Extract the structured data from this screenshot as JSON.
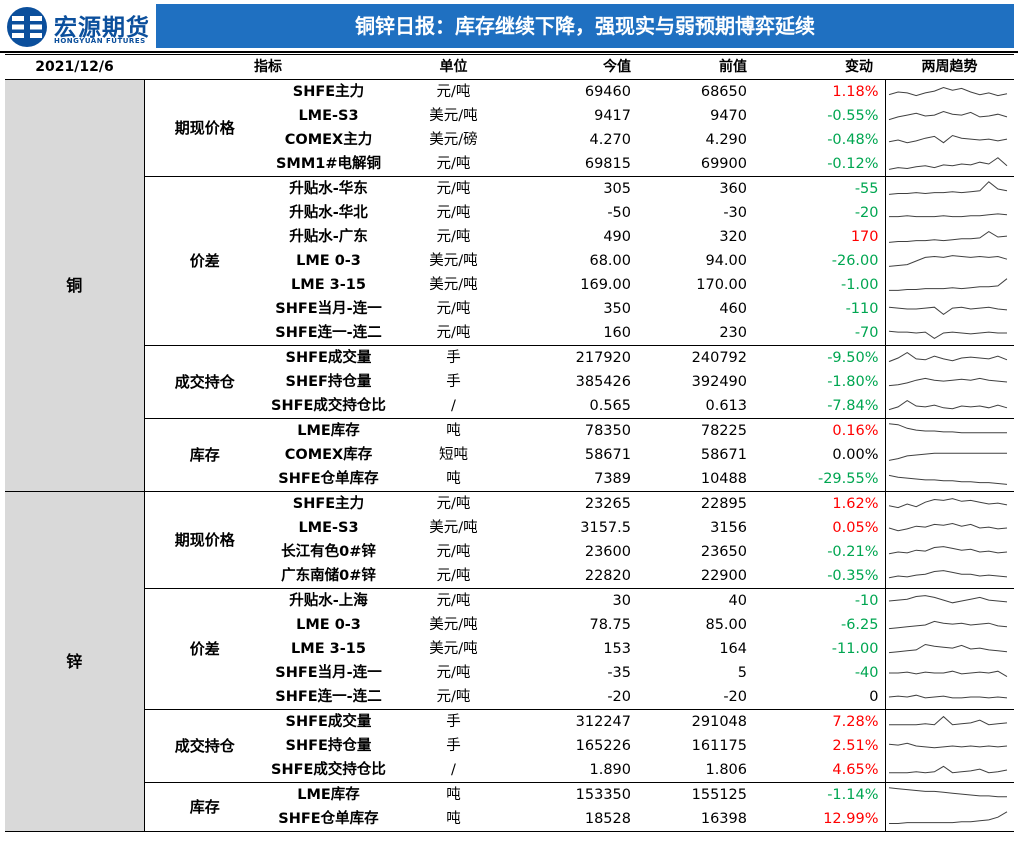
{
  "header": {
    "logo_cn": "宏源期货",
    "logo_en": "HONGYUAN FUTURES",
    "title": "铜锌日报：库存继续下降，强现实与弱预期博弈延续"
  },
  "columns": {
    "date": "2021/12/6",
    "indicator": "指标",
    "unit": "单位",
    "current": "今值",
    "previous": "前值",
    "change": "变动",
    "trend": "两周趋势"
  },
  "colors": {
    "title_bar": "#1f70c1",
    "logo": "#0b4f9c",
    "up": "#ff0000",
    "down": "#00a651",
    "group_bg": "#d9d9d9"
  },
  "groups": [
    {
      "name": "铜",
      "sections": [
        {
          "name": "期现价格",
          "rows": [
            {
              "indicator": "SHFE主力",
              "unit": "元/吨",
              "current": "69460",
              "previous": "68650",
              "change": "1.18%",
              "dir": "up",
              "trend": [
                0.35,
                0.5,
                0.45,
                0.3,
                0.45,
                0.55,
                0.75,
                0.6,
                0.7,
                0.5,
                0.35,
                0.45,
                0.3,
                0.4
              ]
            },
            {
              "indicator": "LME-S3",
              "unit": "美元/吨",
              "current": "9417",
              "previous": "9470",
              "change": "-0.55%",
              "dir": "down",
              "trend": [
                0.3,
                0.45,
                0.55,
                0.65,
                0.5,
                0.55,
                0.75,
                0.6,
                0.55,
                0.7,
                0.45,
                0.5,
                0.6,
                0.45
              ]
            },
            {
              "indicator": "COMEX主力",
              "unit": "美元/磅",
              "current": "4.270",
              "previous": "4.290",
              "change": "-0.48%",
              "dir": "down",
              "trend": [
                0.4,
                0.5,
                0.35,
                0.45,
                0.6,
                0.7,
                0.35,
                0.75,
                0.6,
                0.55,
                0.5,
                0.55,
                0.45,
                0.55
              ]
            },
            {
              "indicator": "SMM1#电解铜",
              "unit": "元/吨",
              "current": "69815",
              "previous": "69900",
              "change": "-0.12%",
              "dir": "down",
              "trend": [
                0.2,
                0.3,
                0.25,
                0.35,
                0.4,
                0.3,
                0.45,
                0.4,
                0.5,
                0.45,
                0.6,
                0.5,
                0.85,
                0.4
              ]
            }
          ]
        },
        {
          "name": "价差",
          "rows": [
            {
              "indicator": "升贴水-华东",
              "unit": "元/吨",
              "current": "305",
              "previous": "360",
              "change": "-55",
              "dir": "down",
              "trend": [
                0.2,
                0.25,
                0.25,
                0.3,
                0.25,
                0.3,
                0.3,
                0.35,
                0.3,
                0.35,
                0.4,
                0.9,
                0.5,
                0.4
              ]
            },
            {
              "indicator": "升贴水-华北",
              "unit": "元/吨",
              "current": "-50",
              "previous": "-30",
              "change": "-20",
              "dir": "down",
              "trend": [
                0.3,
                0.3,
                0.35,
                0.3,
                0.3,
                0.3,
                0.35,
                0.3,
                0.3,
                0.35,
                0.35,
                0.4,
                0.45,
                0.4
              ]
            },
            {
              "indicator": "升贴水-广东",
              "unit": "元/吨",
              "current": "490",
              "previous": "320",
              "change": "170",
              "dir": "up",
              "trend": [
                0.2,
                0.25,
                0.25,
                0.3,
                0.3,
                0.35,
                0.3,
                0.35,
                0.4,
                0.4,
                0.45,
                0.8,
                0.5,
                0.55
              ]
            },
            {
              "indicator": "LME 0-3",
              "unit": "美元/吨",
              "current": "68.00",
              "previous": "94.00",
              "change": "-26.00",
              "dir": "down",
              "trend": [
                0.2,
                0.25,
                0.3,
                0.5,
                0.7,
                0.75,
                0.7,
                0.8,
                0.75,
                0.7,
                0.75,
                0.7,
                0.75,
                0.6
              ]
            },
            {
              "indicator": "LME 3-15",
              "unit": "美元/吨",
              "current": "169.00",
              "previous": "170.00",
              "change": "-1.00",
              "dir": "down",
              "trend": [
                0.2,
                0.2,
                0.25,
                0.25,
                0.3,
                0.3,
                0.3,
                0.35,
                0.3,
                0.35,
                0.4,
                0.4,
                0.45,
                0.85
              ]
            },
            {
              "indicator": "SHFE当月-连一",
              "unit": "元/吨",
              "current": "350",
              "previous": "460",
              "change": "-110",
              "dir": "down",
              "trend": [
                0.6,
                0.55,
                0.5,
                0.5,
                0.55,
                0.6,
                0.2,
                0.55,
                0.6,
                0.5,
                0.55,
                0.6,
                0.5,
                0.45
              ]
            },
            {
              "indicator": "SHFE连一-连二",
              "unit": "元/吨",
              "current": "160",
              "previous": "230",
              "change": "-70",
              "dir": "down",
              "trend": [
                0.6,
                0.55,
                0.55,
                0.5,
                0.55,
                0.2,
                0.5,
                0.55,
                0.5,
                0.45,
                0.5,
                0.55,
                0.5,
                0.5
              ]
            }
          ]
        },
        {
          "name": "成交持仓",
          "rows": [
            {
              "indicator": "SHFE成交量",
              "unit": "手",
              "current": "217920",
              "previous": "240792",
              "change": "-9.50%",
              "dir": "down",
              "trend": [
                0.3,
                0.5,
                0.8,
                0.45,
                0.4,
                0.6,
                0.45,
                0.35,
                0.5,
                0.55,
                0.5,
                0.45,
                0.6,
                0.4
              ]
            },
            {
              "indicator": "SHEF持仓量",
              "unit": "手",
              "current": "385426",
              "previous": "392490",
              "change": "-1.80%",
              "dir": "down",
              "trend": [
                0.3,
                0.35,
                0.45,
                0.6,
                0.7,
                0.6,
                0.55,
                0.6,
                0.65,
                0.6,
                0.7,
                0.6,
                0.55,
                0.5
              ]
            },
            {
              "indicator": "SHFE成交持仓比",
              "unit": "/",
              "current": "0.565",
              "previous": "0.613",
              "change": "-7.84%",
              "dir": "down",
              "trend": [
                0.3,
                0.45,
                0.8,
                0.5,
                0.45,
                0.55,
                0.4,
                0.35,
                0.5,
                0.45,
                0.5,
                0.4,
                0.55,
                0.4
              ]
            }
          ]
        },
        {
          "name": "库存",
          "rows": [
            {
              "indicator": "LME库存",
              "unit": "吨",
              "current": "78350",
              "previous": "78225",
              "change": "0.16%",
              "dir": "up",
              "trend": [
                0.9,
                0.85,
                0.65,
                0.55,
                0.5,
                0.5,
                0.45,
                0.45,
                0.4,
                0.4,
                0.4,
                0.4,
                0.4,
                0.4
              ]
            },
            {
              "indicator": "COMEX库存",
              "unit": "短吨",
              "current": "58671",
              "previous": "58671",
              "change": "0.00%",
              "dir": "flat",
              "trend": [
                0.2,
                0.3,
                0.45,
                0.5,
                0.55,
                0.6,
                0.6,
                0.6,
                0.6,
                0.6,
                0.6,
                0.6,
                0.6,
                0.6
              ]
            },
            {
              "indicator": "SHFE仓单库存",
              "unit": "吨",
              "current": "7389",
              "previous": "10488",
              "change": "-29.55%",
              "dir": "down",
              "trend": [
                0.7,
                0.6,
                0.55,
                0.5,
                0.45,
                0.45,
                0.4,
                0.4,
                0.35,
                0.35,
                0.3,
                0.3,
                0.25,
                0.2
              ]
            }
          ]
        }
      ]
    },
    {
      "name": "锌",
      "sections": [
        {
          "name": "期现价格",
          "rows": [
            {
              "indicator": "SHFE主力",
              "unit": "元/吨",
              "current": "23265",
              "previous": "22895",
              "change": "1.62%",
              "dir": "up",
              "trend": [
                0.4,
                0.3,
                0.5,
                0.35,
                0.6,
                0.75,
                0.7,
                0.8,
                0.65,
                0.7,
                0.6,
                0.5,
                0.55,
                0.45
              ]
            },
            {
              "indicator": "LME-S3",
              "unit": "美元/吨",
              "current": "3157.5",
              "previous": "3156",
              "change": "0.05%",
              "dir": "up",
              "trend": [
                0.5,
                0.35,
                0.45,
                0.6,
                0.55,
                0.7,
                0.65,
                0.75,
                0.6,
                0.7,
                0.5,
                0.55,
                0.45,
                0.5
              ]
            },
            {
              "indicator": "长江有色0#锌",
              "unit": "元/吨",
              "current": "23600",
              "previous": "23650",
              "change": "-0.21%",
              "dir": "down",
              "trend": [
                0.4,
                0.5,
                0.45,
                0.6,
                0.55,
                0.75,
                0.8,
                0.7,
                0.6,
                0.65,
                0.5,
                0.55,
                0.45,
                0.5
              ]
            },
            {
              "indicator": "广东南储0#锌",
              "unit": "元/吨",
              "current": "22820",
              "previous": "22900",
              "change": "-0.35%",
              "dir": "down",
              "trend": [
                0.4,
                0.5,
                0.45,
                0.55,
                0.6,
                0.75,
                0.8,
                0.7,
                0.6,
                0.6,
                0.5,
                0.55,
                0.5,
                0.45
              ]
            }
          ]
        },
        {
          "name": "价差",
          "rows": [
            {
              "indicator": "升贴水-上海",
              "unit": "元/吨",
              "current": "30",
              "previous": "40",
              "change": "-10",
              "dir": "down",
              "trend": [
                0.5,
                0.55,
                0.6,
                0.75,
                0.8,
                0.7,
                0.55,
                0.4,
                0.5,
                0.6,
                0.7,
                0.55,
                0.5,
                0.45
              ]
            },
            {
              "indicator": "LME 0-3",
              "unit": "美元/吨",
              "current": "78.75",
              "previous": "85.00",
              "change": "-6.25",
              "dir": "down",
              "trend": [
                0.3,
                0.35,
                0.4,
                0.45,
                0.5,
                0.7,
                0.6,
                0.55,
                0.6,
                0.5,
                0.55,
                0.6,
                0.45,
                0.4
              ]
            },
            {
              "indicator": "LME 3-15",
              "unit": "美元/吨",
              "current": "153",
              "previous": "164",
              "change": "-11.00",
              "dir": "down",
              "trend": [
                0.3,
                0.35,
                0.4,
                0.45,
                0.75,
                0.65,
                0.6,
                0.55,
                0.7,
                0.5,
                0.55,
                0.45,
                0.4,
                0.35
              ]
            },
            {
              "indicator": "SHFE当月-连一",
              "unit": "元/吨",
              "current": "-35",
              "previous": "5",
              "change": "-40",
              "dir": "down",
              "trend": [
                0.5,
                0.5,
                0.55,
                0.45,
                0.55,
                0.5,
                0.5,
                0.6,
                0.45,
                0.5,
                0.55,
                0.5,
                0.6,
                0.3
              ]
            },
            {
              "indicator": "SHFE连一-连二",
              "unit": "元/吨",
              "current": "-20",
              "previous": "-20",
              "change": "0",
              "dir": "flat",
              "trend": [
                0.5,
                0.55,
                0.5,
                0.6,
                0.45,
                0.5,
                0.55,
                0.45,
                0.45,
                0.5,
                0.5,
                0.45,
                0.5,
                0.45
              ]
            }
          ]
        },
        {
          "name": "成交持仓",
          "rows": [
            {
              "indicator": "SHFE成交量",
              "unit": "手",
              "current": "312247",
              "previous": "291048",
              "change": "7.28%",
              "dir": "up",
              "trend": [
                0.35,
                0.35,
                0.35,
                0.35,
                0.4,
                0.35,
                0.8,
                0.35,
                0.4,
                0.45,
                0.6,
                0.35,
                0.4,
                0.45
              ]
            },
            {
              "indicator": "SHFE持仓量",
              "unit": "手",
              "current": "165226",
              "previous": "161175",
              "change": "2.51%",
              "dir": "up",
              "trend": [
                0.6,
                0.55,
                0.65,
                0.5,
                0.45,
                0.4,
                0.45,
                0.5,
                0.45,
                0.5,
                0.45,
                0.5,
                0.45,
                0.5
              ]
            },
            {
              "indicator": "SHFE成交持仓比",
              "unit": "/",
              "current": "1.890",
              "previous": "1.806",
              "change": "4.65%",
              "dir": "up",
              "trend": [
                0.35,
                0.35,
                0.35,
                0.4,
                0.35,
                0.4,
                0.7,
                0.35,
                0.4,
                0.45,
                0.55,
                0.35,
                0.4,
                0.5
              ]
            }
          ]
        },
        {
          "name": "库存",
          "rows": [
            {
              "indicator": "LME库存",
              "unit": "吨",
              "current": "153350",
              "previous": "155125",
              "change": "-1.14%",
              "dir": "down",
              "trend": [
                0.9,
                0.85,
                0.8,
                0.75,
                0.7,
                0.7,
                0.65,
                0.6,
                0.55,
                0.5,
                0.45,
                0.45,
                0.4,
                0.4
              ]
            },
            {
              "indicator": "SHFE仓单库存",
              "unit": "吨",
              "current": "18528",
              "previous": "16398",
              "change": "12.99%",
              "dir": "up",
              "trend": [
                0.25,
                0.25,
                0.3,
                0.3,
                0.3,
                0.3,
                0.3,
                0.3,
                0.35,
                0.35,
                0.4,
                0.45,
                0.6,
                0.9
              ]
            }
          ]
        }
      ]
    }
  ]
}
